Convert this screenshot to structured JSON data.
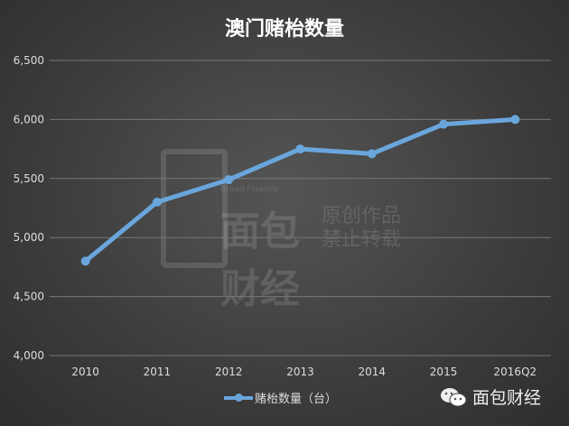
{
  "chart_data": {
    "type": "line",
    "title": "澳门赌枱数量",
    "categories": [
      "2010",
      "2011",
      "2012",
      "2013",
      "2014",
      "2015",
      "2016Q2"
    ],
    "series": [
      {
        "name": "赌枱数量（台）",
        "values": [
          4800,
          5300,
          5490,
          5750,
          5710,
          5960,
          6000
        ],
        "color": "#6aa6dc"
      }
    ],
    "ylim": [
      4000,
      6500
    ],
    "yticks": [
      "4,000",
      "4,500",
      "5,000",
      "5,500",
      "6,000",
      "6,500"
    ],
    "grid": true,
    "legend": "bottom",
    "xlabel": "",
    "ylabel": ""
  },
  "watermark": {
    "small": "Bread Finance",
    "big": "面包财经",
    "line1": "原创作品",
    "line2": "禁止转载"
  },
  "brand": {
    "label": "面包财经",
    "icon": "wechat-icon"
  }
}
